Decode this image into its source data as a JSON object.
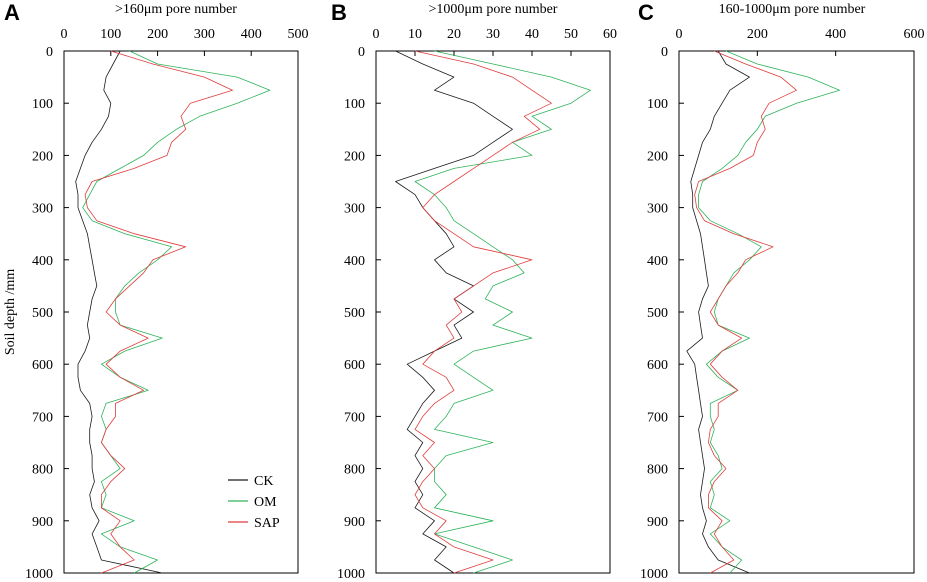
{
  "chart_data": [
    {
      "panel": "A",
      "type": "line",
      "title": ">160μm pore number",
      "xlabel": "",
      "ylabel": "Soil depth /mm",
      "xlim": [
        0,
        500
      ],
      "ylim": [
        0,
        1000
      ],
      "y_inverted": true,
      "x_ticks": [
        0,
        100,
        200,
        300,
        400,
        500
      ],
      "y_ticks": [
        0,
        100,
        200,
        300,
        400,
        500,
        600,
        700,
        800,
        900,
        1000
      ],
      "legend": {
        "placement": "bottom-right",
        "entries": [
          "CK",
          "OM",
          "SAP"
        ]
      },
      "series": [
        {
          "name": "CK",
          "color": "#1a1a1a",
          "y": [
            0,
            25,
            50,
            75,
            100,
            125,
            150,
            175,
            200,
            225,
            250,
            275,
            300,
            325,
            350,
            375,
            400,
            425,
            450,
            475,
            500,
            525,
            550,
            575,
            600,
            625,
            650,
            675,
            700,
            725,
            750,
            775,
            800,
            825,
            850,
            875,
            900,
            925,
            950,
            975,
            1000
          ],
          "x": [
            120,
            105,
            90,
            85,
            100,
            95,
            80,
            60,
            45,
            35,
            25,
            30,
            30,
            40,
            50,
            55,
            60,
            65,
            70,
            60,
            55,
            50,
            55,
            45,
            30,
            30,
            35,
            55,
            60,
            55,
            55,
            60,
            60,
            65,
            55,
            60,
            75,
            60,
            70,
            80,
            210
          ]
        },
        {
          "name": "OM",
          "color": "#2eb35a",
          "y": [
            0,
            25,
            50,
            75,
            100,
            125,
            150,
            175,
            200,
            225,
            250,
            275,
            300,
            325,
            350,
            375,
            400,
            425,
            450,
            475,
            500,
            525,
            550,
            575,
            600,
            625,
            650,
            675,
            700,
            725,
            750,
            775,
            800,
            825,
            850,
            875,
            900,
            925,
            950,
            975,
            1000
          ],
          "x": [
            140,
            200,
            370,
            440,
            370,
            290,
            240,
            200,
            170,
            120,
            70,
            55,
            40,
            60,
            130,
            230,
            200,
            160,
            130,
            110,
            110,
            120,
            210,
            130,
            80,
            120,
            180,
            90,
            80,
            90,
            80,
            100,
            120,
            80,
            90,
            80,
            150,
            80,
            120,
            200,
            150
          ]
        },
        {
          "name": "SAP",
          "color": "#e03c3c",
          "y": [
            0,
            25,
            50,
            75,
            100,
            125,
            150,
            175,
            200,
            225,
            250,
            275,
            300,
            325,
            350,
            375,
            400,
            425,
            450,
            475,
            500,
            525,
            550,
            575,
            600,
            625,
            650,
            675,
            700,
            725,
            750,
            775,
            800,
            825,
            850,
            875,
            900,
            925,
            950,
            975,
            1000
          ],
          "x": [
            100,
            190,
            300,
            360,
            270,
            250,
            260,
            230,
            220,
            150,
            60,
            45,
            50,
            70,
            150,
            260,
            190,
            170,
            140,
            110,
            90,
            120,
            180,
            120,
            90,
            120,
            170,
            110,
            110,
            90,
            80,
            100,
            130,
            100,
            80,
            80,
            120,
            100,
            120,
            150,
            80
          ]
        }
      ]
    },
    {
      "panel": "B",
      "type": "line",
      "title": ">1000μm pore number",
      "xlabel": "",
      "ylabel": "",
      "xlim": [
        0,
        60
      ],
      "ylim": [
        0,
        1000
      ],
      "y_inverted": true,
      "x_ticks": [
        0,
        10,
        20,
        30,
        40,
        50,
        60
      ],
      "y_ticks": [
        0,
        100,
        200,
        300,
        400,
        500,
        600,
        700,
        800,
        900,
        1000
      ],
      "series": [
        {
          "name": "CK",
          "color": "#1a1a1a",
          "y": [
            0,
            25,
            50,
            75,
            100,
            125,
            150,
            175,
            200,
            225,
            250,
            275,
            300,
            325,
            350,
            375,
            400,
            425,
            450,
            475,
            500,
            525,
            550,
            575,
            600,
            625,
            650,
            675,
            700,
            725,
            750,
            775,
            800,
            825,
            850,
            875,
            900,
            925,
            950,
            975,
            1000
          ],
          "x": [
            5,
            12,
            20,
            15,
            25,
            30,
            35,
            30,
            25,
            15,
            5,
            10,
            12,
            15,
            18,
            20,
            15,
            18,
            25,
            20,
            25,
            20,
            22,
            15,
            8,
            12,
            15,
            12,
            10,
            8,
            12,
            10,
            12,
            10,
            12,
            10,
            15,
            12,
            18,
            15,
            20
          ]
        },
        {
          "name": "OM",
          "color": "#2eb35a",
          "y": [
            0,
            25,
            50,
            75,
            100,
            125,
            150,
            175,
            200,
            225,
            250,
            275,
            300,
            325,
            350,
            375,
            400,
            425,
            450,
            475,
            500,
            525,
            550,
            575,
            600,
            625,
            650,
            675,
            700,
            725,
            750,
            775,
            800,
            825,
            850,
            875,
            900,
            925,
            950,
            975,
            1000
          ],
          "x": [
            15,
            30,
            45,
            55,
            50,
            40,
            45,
            35,
            40,
            20,
            10,
            15,
            18,
            20,
            25,
            30,
            35,
            38,
            30,
            28,
            35,
            30,
            40,
            25,
            20,
            25,
            30,
            20,
            18,
            15,
            30,
            18,
            15,
            15,
            18,
            15,
            30,
            15,
            25,
            35,
            25
          ]
        },
        {
          "name": "SAP",
          "color": "#e03c3c",
          "y": [
            0,
            25,
            50,
            75,
            100,
            125,
            150,
            175,
            200,
            225,
            250,
            275,
            300,
            325,
            350,
            375,
            400,
            425,
            450,
            475,
            500,
            525,
            550,
            575,
            600,
            625,
            650,
            675,
            700,
            725,
            750,
            775,
            800,
            825,
            850,
            875,
            900,
            925,
            950,
            975,
            1000
          ],
          "x": [
            10,
            25,
            35,
            40,
            45,
            38,
            42,
            35,
            30,
            25,
            20,
            15,
            12,
            15,
            20,
            25,
            40,
            30,
            25,
            20,
            22,
            18,
            20,
            15,
            12,
            18,
            20,
            15,
            12,
            10,
            15,
            12,
            15,
            12,
            10,
            12,
            18,
            15,
            20,
            30,
            20
          ]
        }
      ]
    },
    {
      "panel": "C",
      "type": "line",
      "title": "160-1000μm pore number",
      "xlabel": "",
      "ylabel": "",
      "xlim": [
        0,
        600
      ],
      "ylim": [
        0,
        1000
      ],
      "y_inverted": true,
      "x_ticks": [
        0,
        200,
        400,
        600
      ],
      "y_ticks": [
        0,
        100,
        200,
        300,
        400,
        500,
        600,
        700,
        800,
        900,
        1000
      ],
      "series": [
        {
          "name": "CK",
          "color": "#1a1a1a",
          "y": [
            0,
            25,
            50,
            75,
            100,
            125,
            150,
            175,
            200,
            225,
            250,
            275,
            300,
            325,
            350,
            375,
            400,
            425,
            450,
            475,
            500,
            525,
            550,
            575,
            600,
            625,
            650,
            675,
            700,
            725,
            750,
            775,
            800,
            825,
            850,
            875,
            900,
            925,
            950,
            975,
            1000
          ],
          "x": [
            100,
            120,
            180,
            130,
            110,
            90,
            80,
            60,
            50,
            40,
            30,
            35,
            35,
            45,
            55,
            60,
            65,
            70,
            75,
            60,
            50,
            55,
            60,
            20,
            40,
            45,
            50,
            55,
            60,
            50,
            55,
            60,
            65,
            60,
            55,
            60,
            70,
            60,
            75,
            100,
            180
          ]
        },
        {
          "name": "OM",
          "color": "#2eb35a",
          "y": [
            0,
            25,
            50,
            75,
            100,
            125,
            150,
            175,
            200,
            225,
            250,
            275,
            300,
            325,
            350,
            375,
            400,
            425,
            450,
            475,
            500,
            525,
            550,
            575,
            600,
            625,
            650,
            675,
            700,
            725,
            750,
            775,
            800,
            825,
            850,
            875,
            900,
            925,
            950,
            975,
            1000
          ],
          "x": [
            120,
            200,
            330,
            410,
            300,
            220,
            200,
            170,
            150,
            110,
            60,
            50,
            50,
            80,
            150,
            210,
            180,
            140,
            120,
            100,
            90,
            100,
            180,
            110,
            70,
            100,
            150,
            80,
            80,
            90,
            80,
            100,
            110,
            80,
            90,
            80,
            130,
            80,
            110,
            160,
            130
          ]
        },
        {
          "name": "SAP",
          "color": "#e03c3c",
          "y": [
            0,
            25,
            50,
            75,
            100,
            125,
            150,
            175,
            200,
            225,
            250,
            275,
            300,
            325,
            350,
            375,
            400,
            425,
            450,
            475,
            500,
            525,
            550,
            575,
            600,
            625,
            650,
            675,
            700,
            725,
            750,
            775,
            800,
            825,
            850,
            875,
            900,
            925,
            950,
            975,
            1000
          ],
          "x": [
            90,
            170,
            260,
            300,
            230,
            210,
            220,
            200,
            190,
            130,
            50,
            40,
            45,
            65,
            140,
            240,
            170,
            150,
            120,
            100,
            80,
            100,
            160,
            110,
            80,
            110,
            150,
            100,
            100,
            80,
            75,
            90,
            120,
            90,
            75,
            75,
            110,
            90,
            110,
            140,
            80
          ]
        }
      ]
    }
  ]
}
